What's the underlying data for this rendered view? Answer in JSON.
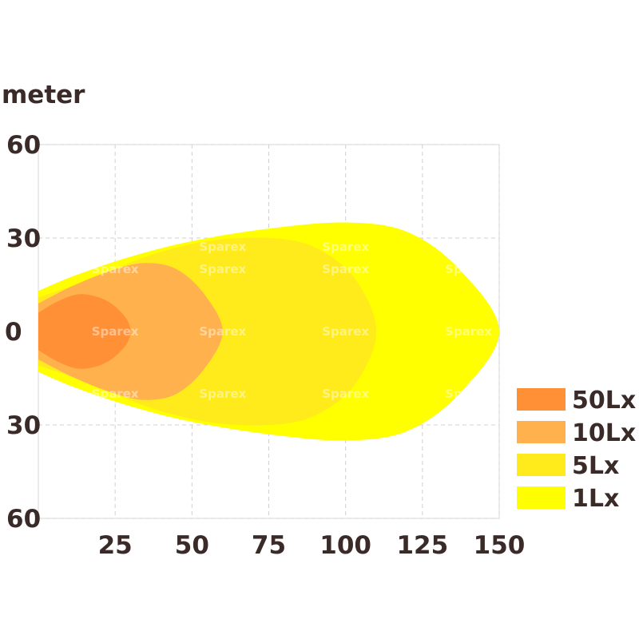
{
  "chart_data": {
    "type": "area",
    "title": "",
    "ylabel": "meter",
    "xlabel": "",
    "xlim": [
      0,
      150
    ],
    "ylim": [
      -60,
      60
    ],
    "x_ticks": [
      "25",
      "50",
      "75",
      "100",
      "125",
      "150"
    ],
    "x_tick_values": [
      25,
      50,
      75,
      100,
      125,
      150
    ],
    "y_ticks": [
      "60",
      "30",
      "0",
      "30",
      "60"
    ],
    "y_tick_values": [
      60,
      30,
      0,
      -30,
      -60
    ],
    "grid": true,
    "watermark": "Sparex",
    "legend_position": "right",
    "series": [
      {
        "name": "1Lx",
        "color": "#ffff00",
        "reach": 150,
        "half_width": 35,
        "outline": [
          [
            0,
            13
          ],
          [
            12,
            18
          ],
          [
            30,
            24
          ],
          [
            50,
            29
          ],
          [
            75,
            33
          ],
          [
            100,
            35
          ],
          [
            120,
            32
          ],
          [
            137,
            20
          ],
          [
            150,
            0
          ],
          [
            137,
            -20
          ],
          [
            120,
            -32
          ],
          [
            100,
            -35
          ],
          [
            75,
            -33
          ],
          [
            50,
            -29
          ],
          [
            30,
            -24
          ],
          [
            12,
            -18
          ],
          [
            0,
            -13
          ]
        ]
      },
      {
        "name": "5Lx",
        "color": "#ffea1c",
        "reach": 110,
        "half_width": 30,
        "outline": [
          [
            0,
            11
          ],
          [
            15,
            16
          ],
          [
            35,
            24
          ],
          [
            55,
            29
          ],
          [
            75,
            30
          ],
          [
            90,
            27
          ],
          [
            103,
            17
          ],
          [
            110,
            0
          ],
          [
            103,
            -17
          ],
          [
            90,
            -27
          ],
          [
            75,
            -30
          ],
          [
            55,
            -29
          ],
          [
            35,
            -24
          ],
          [
            15,
            -16
          ],
          [
            0,
            -11
          ]
        ]
      },
      {
        "name": "10Lx",
        "color": "#ffb14e",
        "reach": 60,
        "half_width": 22,
        "outline": [
          [
            0,
            9
          ],
          [
            12,
            15
          ],
          [
            25,
            20
          ],
          [
            35,
            22
          ],
          [
            45,
            20
          ],
          [
            54,
            12
          ],
          [
            60,
            0
          ],
          [
            54,
            -12
          ],
          [
            45,
            -20
          ],
          [
            35,
            -22
          ],
          [
            25,
            -20
          ],
          [
            12,
            -15
          ],
          [
            0,
            -9
          ]
        ]
      },
      {
        "name": "50Lx",
        "color": "#ff9036",
        "reach": 30,
        "half_width": 12,
        "outline": [
          [
            0,
            6
          ],
          [
            7,
            10
          ],
          [
            14,
            12
          ],
          [
            22,
            10
          ],
          [
            28,
            5
          ],
          [
            30,
            0
          ],
          [
            28,
            -5
          ],
          [
            22,
            -10
          ],
          [
            14,
            -12
          ],
          [
            7,
            -10
          ],
          [
            0,
            -6
          ]
        ]
      }
    ]
  }
}
